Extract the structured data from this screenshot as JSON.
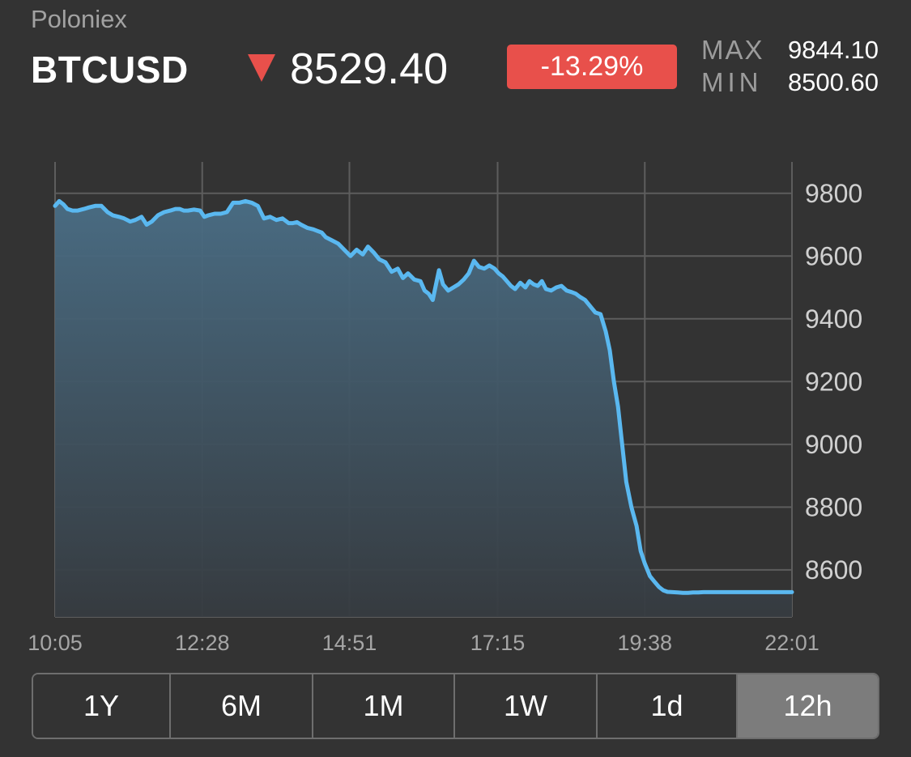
{
  "header": {
    "exchange": "Poloniex",
    "symbol": "BTCUSD",
    "trend_icon": "triangle-down-icon",
    "price": "8529.40",
    "change": "-13.29%",
    "max_label": "MAX",
    "max_value": "9844.10",
    "min_label": "MIN",
    "min_value": "8500.60"
  },
  "colors": {
    "background": "#333333",
    "line": "#5ab8f0",
    "negative": "#e8504b",
    "grid": "#5d5d5d"
  },
  "chart_data": {
    "type": "area",
    "title": "",
    "xlabel": "",
    "ylabel": "",
    "x_ticks": [
      "10:05",
      "12:28",
      "14:51",
      "17:15",
      "19:38",
      "22:01"
    ],
    "y_ticks": [
      9800,
      9600,
      9400,
      9200,
      9000,
      8800,
      8600
    ],
    "ylim": [
      8450,
      9900
    ],
    "xlim": [
      "10:05",
      "22:01"
    ],
    "grid": true,
    "series": [
      {
        "x": [
          "10:05",
          "10:09",
          "10:13",
          "10:17",
          "10:22",
          "10:27",
          "10:33",
          "10:38",
          "10:44",
          "10:50",
          "10:56",
          "11:01",
          "11:07",
          "11:12",
          "11:18",
          "11:23",
          "11:29",
          "11:34",
          "11:39",
          "11:45",
          "11:51",
          "11:57",
          "12:02",
          "12:06",
          "12:10",
          "12:14",
          "12:20",
          "12:26",
          "12:30",
          "12:34",
          "12:40",
          "12:46",
          "12:52",
          "12:58",
          "13:04",
          "13:10",
          "13:16",
          "13:22",
          "13:28",
          "13:34",
          "13:40",
          "13:46",
          "13:52",
          "13:56",
          "14:00",
          "14:04",
          "14:10",
          "14:16",
          "14:20",
          "14:24",
          "14:28",
          "14:34",
          "14:40",
          "14:46",
          "14:52",
          "14:58",
          "15:04",
          "15:09",
          "15:15",
          "15:20",
          "15:26",
          "15:32",
          "15:38",
          "15:43",
          "15:48",
          "15:54",
          "16:00",
          "16:04",
          "16:08",
          "16:12",
          "16:18",
          "16:22",
          "16:27",
          "16:32",
          "16:37",
          "16:42",
          "16:47",
          "16:52",
          "16:57",
          "17:02",
          "17:07",
          "17:12",
          "17:16",
          "17:20",
          "17:24",
          "17:28",
          "17:32",
          "17:37",
          "17:42",
          "17:46",
          "17:50",
          "17:54",
          "17:58",
          "18:02",
          "18:07",
          "18:12",
          "18:17",
          "18:22",
          "18:27",
          "18:31",
          "18:35",
          "18:40",
          "18:45",
          "18:50",
          "18:55",
          "19:00",
          "19:04",
          "19:08",
          "19:12",
          "19:16",
          "19:20",
          "19:25",
          "19:30",
          "19:34",
          "19:38",
          "19:43",
          "19:48",
          "19:52",
          "19:56",
          "20:00",
          "20:05",
          "20:10",
          "20:15",
          "20:20",
          "20:25",
          "20:30",
          "20:35",
          "20:40",
          "20:45",
          "20:50",
          "20:55",
          "21:00",
          "21:05",
          "21:10",
          "21:15",
          "21:20",
          "21:25",
          "21:30",
          "21:34",
          "21:38",
          "21:41",
          "21:43",
          "21:44",
          "21:45",
          "21:46",
          "21:47",
          "21:48",
          "21:50",
          "21:51",
          "21:52",
          "21:53",
          "21:54",
          "21:55",
          "21:56",
          "21:57",
          "21:58",
          "21:59",
          "22:00",
          "22:01"
        ],
        "y": [
          9760,
          9775,
          9765,
          9750,
          9745,
          9745,
          9750,
          9755,
          9760,
          9760,
          9740,
          9730,
          9725,
          9720,
          9710,
          9715,
          9725,
          9700,
          9710,
          9730,
          9740,
          9745,
          9750,
          9750,
          9745,
          9745,
          9748,
          9745,
          9725,
          9730,
          9735,
          9735,
          9740,
          9770,
          9770,
          9775,
          9770,
          9760,
          9720,
          9725,
          9715,
          9720,
          9705,
          9705,
          9708,
          9700,
          9690,
          9685,
          9680,
          9675,
          9660,
          9650,
          9640,
          9620,
          9600,
          9620,
          9605,
          9630,
          9610,
          9590,
          9580,
          9550,
          9560,
          9530,
          9545,
          9525,
          9520,
          9490,
          9480,
          9460,
          9555,
          9510,
          9490,
          9500,
          9510,
          9525,
          9545,
          9585,
          9565,
          9560,
          9570,
          9560,
          9545,
          9535,
          9520,
          9505,
          9495,
          9515,
          9500,
          9520,
          9510,
          9505,
          9520,
          9495,
          9490,
          9500,
          9505,
          9490,
          9485,
          9480,
          9470,
          9460,
          9440,
          9420,
          9415,
          9360,
          9300,
          9200,
          9120,
          9000,
          8880,
          8800,
          8740,
          8660,
          8620,
          8580,
          8560,
          8545,
          8535,
          8530,
          8529,
          8528,
          8527,
          8527,
          8528,
          8528,
          8529,
          8529,
          8529,
          8529,
          8529,
          8529,
          8529,
          8529,
          8529,
          8529,
          8529,
          8529,
          8529,
          8529,
          8529,
          8529,
          8529,
          8529,
          8529,
          8529,
          8529,
          8529,
          8529,
          8529,
          8529,
          8529,
          8529,
          8529,
          8529,
          8529,
          8529,
          8529,
          8529
        ],
        "name": ""
      }
    ]
  },
  "range_selector": {
    "options": [
      "1Y",
      "6M",
      "1M",
      "1W",
      "1d",
      "12h"
    ],
    "selected": "12h"
  }
}
